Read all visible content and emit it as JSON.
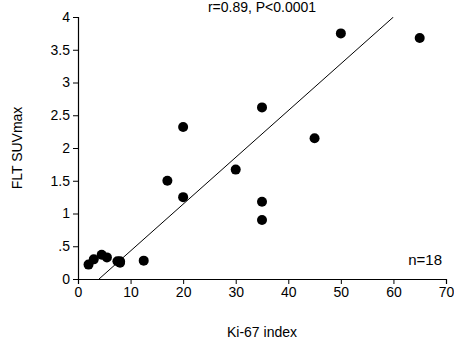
{
  "chart_data": {
    "type": "scatter",
    "title": "r=0.89, P<0.0001",
    "x_label": "Ki-67 index",
    "y_label": "FLT SUVmax",
    "annotation": "n=18",
    "x": [
      2,
      3,
      4.5,
      5.5,
      7.5,
      8,
      8,
      12.5,
      17,
      20,
      20,
      30,
      35,
      35,
      35,
      45,
      50,
      65
    ],
    "values": [
      0.22,
      0.3,
      0.37,
      0.33,
      0.27,
      0.27,
      0.25,
      0.28,
      1.5,
      2.32,
      1.25,
      1.67,
      2.62,
      1.18,
      0.9,
      2.15,
      3.75,
      3.68
    ],
    "regression": {
      "x": [
        4,
        60
      ],
      "y": [
        0,
        4
      ]
    },
    "color": "#000000",
    "marker": "circle",
    "xlim": [
      0,
      70
    ],
    "xticks": [
      0,
      10,
      20,
      30,
      40,
      50,
      60,
      70
    ],
    "ylim": [
      0,
      4
    ],
    "yticks": [
      0,
      {
        "value": 0.5,
        "label": ".5"
      },
      1,
      1.5,
      2,
      2.5,
      3,
      3.5,
      4
    ]
  }
}
